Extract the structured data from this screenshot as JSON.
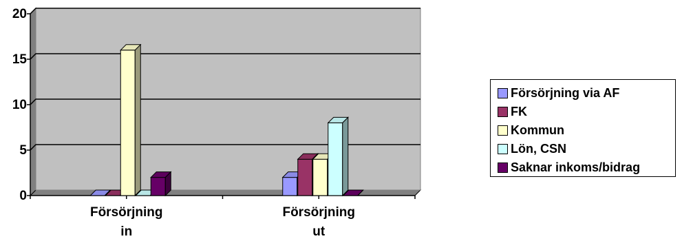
{
  "chart_data": {
    "type": "bar",
    "categories": [
      [
        "Försörjning",
        "in"
      ],
      [
        "Försörjning",
        "ut"
      ]
    ],
    "series": [
      {
        "name": "Försörjning via AF",
        "color": "#9999ff",
        "values": [
          0,
          2
        ]
      },
      {
        "name": "FK",
        "color": "#993366",
        "values": [
          0,
          4
        ]
      },
      {
        "name": "Kommun",
        "color": "#ffffcc",
        "values": [
          16,
          4
        ]
      },
      {
        "name": "Lön, CSN",
        "color": "#ccffff",
        "values": [
          0,
          8
        ]
      },
      {
        "name": "Saknar inkoms/bidrag",
        "color": "#660066",
        "values": [
          2,
          0
        ]
      }
    ],
    "ylim": [
      0,
      20
    ],
    "yticks": [
      "0",
      "5",
      "10",
      "15",
      "20"
    ],
    "gridlines": true,
    "plot_background": "#c0c0c0",
    "legend": "right"
  }
}
